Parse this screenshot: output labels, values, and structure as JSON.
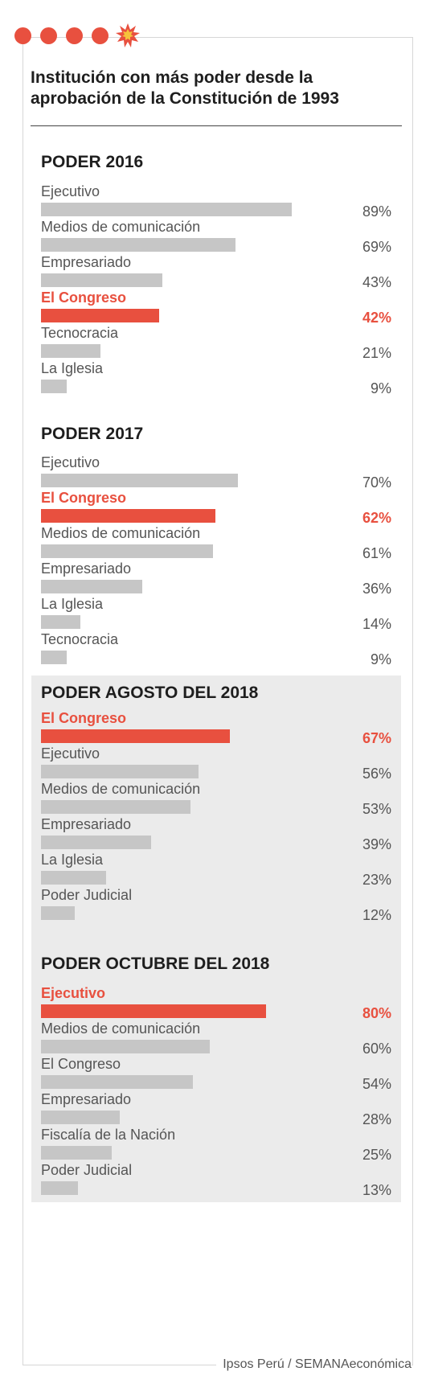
{
  "title": "Institución con más poder desde la aprobación de la Constitución de 1993",
  "source": "Ipsos Perú / SEMANAeconómica",
  "colors": {
    "highlight": "#e8503f",
    "bar": "#c6c6c6",
    "shade": "#ebebeb"
  },
  "header": {
    "dots": 4,
    "burst_icon": "starburst-icon"
  },
  "chart_data": [
    {
      "type": "bar",
      "title": "PODER 2016",
      "unit": "%",
      "categories": [
        "Ejecutivo",
        "Medios de comunicación",
        "Empresariado",
        "El Congreso",
        "Tecnocracia",
        "La Iglesia"
      ],
      "values": [
        89,
        69,
        43,
        42,
        21,
        9
      ],
      "highlight": "El Congreso",
      "shaded": false
    },
    {
      "type": "bar",
      "title": "PODER 2017",
      "unit": "%",
      "categories": [
        "Ejecutivo",
        "El Congreso",
        "Medios de comunicación",
        "Empresariado",
        "La Iglesia",
        "Tecnocracia"
      ],
      "values": [
        70,
        62,
        61,
        36,
        14,
        9
      ],
      "highlight": "El Congreso",
      "shaded": false
    },
    {
      "type": "bar",
      "title": "PODER AGOSTO DEL 2018",
      "unit": "%",
      "categories": [
        "El Congreso",
        "Ejecutivo",
        "Medios de comunicación",
        "Empresariado",
        "La Iglesia",
        "Poder Judicial"
      ],
      "values": [
        67,
        56,
        53,
        39,
        23,
        12
      ],
      "highlight": "El Congreso",
      "shaded": true
    },
    {
      "type": "bar",
      "title": "PODER OCTUBRE DEL 2018",
      "unit": "%",
      "categories": [
        "Ejecutivo",
        "Medios de comunicación",
        "El Congreso",
        "Empresariado",
        "Fiscalía de la Nación",
        "Poder Judicial"
      ],
      "values": [
        80,
        60,
        54,
        28,
        25,
        13
      ],
      "highlight": "Ejecutivo",
      "shaded": true
    }
  ]
}
